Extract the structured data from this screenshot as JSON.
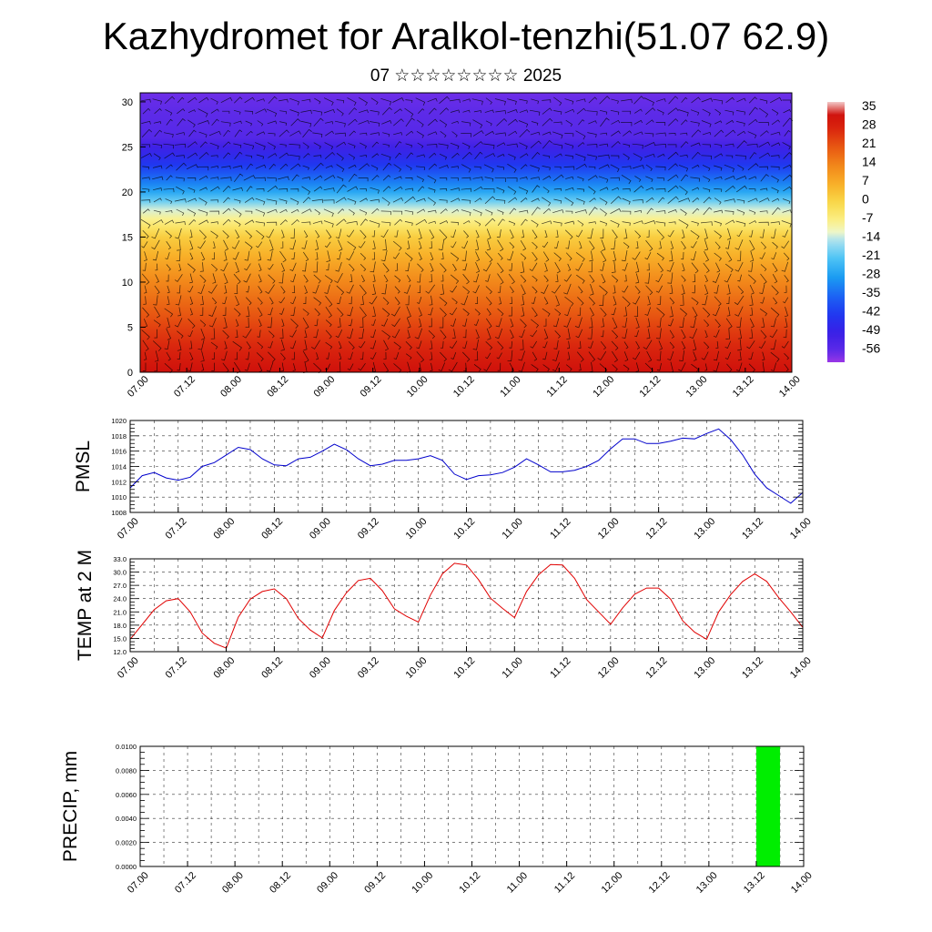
{
  "header": {
    "title": "Kazhydromet for Aralkol-tenzhi(51.07 62.9)",
    "subtitle": "07 ☆☆☆☆☆☆☆☆ 2025"
  },
  "chart_data": [
    {
      "type": "heatmap",
      "title": "",
      "xlabel": "",
      "ylabel": "",
      "x_tick_labels": [
        "07.00",
        "07.12",
        "08.00",
        "08.12",
        "09.00",
        "09.12",
        "10.00",
        "10.12",
        "11.00",
        "11.12",
        "12.00",
        "12.12",
        "13.00",
        "13.12",
        "14.00"
      ],
      "y_ticks": [
        0,
        5,
        10,
        15,
        20,
        25,
        30
      ],
      "ylim": [
        0,
        31
      ],
      "colorbar_labels": [
        "35",
        "28",
        "21",
        "14",
        "7",
        "0",
        "-7",
        "-14",
        "-21",
        "-28",
        "-35",
        "-42",
        "-49",
        "-56"
      ],
      "colorbar_range": [
        -60,
        38
      ],
      "description_levels": [
        {
          "level": 0,
          "value": 33
        },
        {
          "level": 5,
          "value": 24
        },
        {
          "level": 10,
          "value": 14
        },
        {
          "level": 15,
          "value": 2
        },
        {
          "level": 18,
          "value": -12
        },
        {
          "level": 20,
          "value": -26
        },
        {
          "level": 23,
          "value": -42
        },
        {
          "level": 26,
          "value": -54
        },
        {
          "level": 31,
          "value": -57
        }
      ],
      "overlay": "wind barbs (black)",
      "colors": {
        "cold": "#3a1fd6",
        "mid": "#f6f5a6",
        "warm": "#d9150b"
      }
    },
    {
      "type": "line",
      "ylabel": "PMSL",
      "ylim": [
        1008,
        1020
      ],
      "y_ticks": [
        1008,
        1010,
        1012,
        1014,
        1016,
        1018,
        1020
      ],
      "x_tick_labels": [
        "07.00",
        "07.12",
        "08.00",
        "08.12",
        "09.00",
        "09.12",
        "10.00",
        "10.12",
        "11.00",
        "11.12",
        "12.00",
        "12.12",
        "13.00",
        "13.12",
        "14.00"
      ],
      "series": [
        {
          "color": "#0000cc",
          "x": [
            0,
            3,
            6,
            9,
            12,
            15,
            18,
            21,
            24,
            27,
            30,
            33,
            36,
            39,
            42,
            45,
            48,
            51,
            54,
            57,
            60,
            63,
            66,
            69,
            72,
            75,
            78,
            81,
            84,
            87,
            90,
            93,
            96,
            99,
            102,
            105,
            108,
            111,
            114,
            117,
            120,
            123,
            126,
            129,
            132,
            135,
            138,
            141,
            144,
            147,
            150,
            153,
            156,
            159,
            162,
            165,
            168
          ],
          "values": [
            1011.2,
            1012.8,
            1013.2,
            1012.5,
            1012.2,
            1012.6,
            1014.0,
            1014.5,
            1015.5,
            1016.5,
            1016.2,
            1015.0,
            1014.2,
            1014.1,
            1015.0,
            1015.2,
            1016.0,
            1016.9,
            1016.2,
            1015.0,
            1014.1,
            1014.3,
            1014.8,
            1014.8,
            1015.0,
            1015.4,
            1014.8,
            1013.0,
            1012.3,
            1012.8,
            1012.9,
            1013.2,
            1013.9,
            1015.0,
            1014.2,
            1013.3,
            1013.3,
            1013.5,
            1014.0,
            1014.8,
            1016.3,
            1017.6,
            1017.6,
            1017.0,
            1017.0,
            1017.3,
            1017.7,
            1017.6,
            1018.3,
            1018.9,
            1017.5,
            1015.5,
            1013.0,
            1011.2,
            1010.2,
            1009.2,
            1010.6
          ]
        }
      ]
    },
    {
      "type": "line",
      "ylabel": "TEMP at 2 M",
      "ylim": [
        12,
        33
      ],
      "y_ticks": [
        12.0,
        15.0,
        18.0,
        21.0,
        24.0,
        27.0,
        30.0,
        33.0
      ],
      "y_tick_labels": [
        "12.0",
        "15.0",
        "18.0",
        "21.0",
        "24.0",
        "27.0",
        "30.0",
        "33.0"
      ],
      "x_tick_labels": [
        "07.00",
        "07.12",
        "08.00",
        "08.12",
        "09.00",
        "09.12",
        "10.00",
        "10.12",
        "11.00",
        "11.12",
        "12.00",
        "12.12",
        "13.00",
        "13.12",
        "14.00"
      ],
      "series": [
        {
          "color": "#e00000",
          "x": [
            0,
            6,
            9,
            12,
            15,
            18,
            21,
            24,
            27,
            30,
            33,
            36,
            39,
            42,
            45,
            48,
            51,
            54,
            57,
            60,
            63,
            66,
            69,
            72,
            75,
            78,
            81,
            84,
            87,
            90,
            93,
            96,
            99,
            102,
            105,
            108,
            111,
            114,
            117,
            120,
            123,
            126,
            129,
            132,
            135,
            138,
            141,
            144,
            147,
            150,
            153,
            156,
            159,
            162,
            165,
            168
          ],
          "values": [
            14.8,
            21.5,
            23.5,
            24.0,
            21.0,
            16.2,
            13.9,
            12.8,
            19.8,
            23.9,
            25.6,
            26.2,
            24.0,
            19.5,
            16.9,
            15.1,
            21.3,
            25.3,
            28.1,
            28.6,
            25.8,
            21.7,
            20.0,
            18.7,
            24.8,
            29.6,
            32.0,
            31.6,
            28.3,
            24.1,
            21.8,
            19.7,
            25.6,
            29.4,
            31.7,
            31.6,
            28.6,
            23.8,
            21.0,
            18.2,
            21.9,
            25.0,
            26.4,
            26.4,
            23.9,
            19.0,
            16.4,
            14.8,
            21.0,
            24.9,
            27.9,
            29.6,
            27.9,
            24.2,
            21.0,
            17.5
          ]
        }
      ]
    },
    {
      "type": "bar",
      "ylabel": "PRECIP, mm",
      "ylim": [
        0,
        0.01
      ],
      "y_ticks": [
        0,
        0.002,
        0.004,
        0.006,
        0.008,
        0.01
      ],
      "y_tick_labels": [
        "0.0000",
        "0.0020",
        "0.0040",
        "0.0060",
        "0.0080",
        "0.0100"
      ],
      "x_tick_labels": [
        "07.00",
        "07.12",
        "08.00",
        "08.12",
        "09.00",
        "09.12",
        "10.00",
        "10.12",
        "11.00",
        "11.12",
        "12.00",
        "12.12",
        "13.00",
        "13.12",
        "14.00"
      ],
      "bars": [
        {
          "x_start": 156,
          "x_end": 162,
          "value": 0.01
        }
      ],
      "colors": {
        "bar": "#00ee00"
      }
    }
  ]
}
